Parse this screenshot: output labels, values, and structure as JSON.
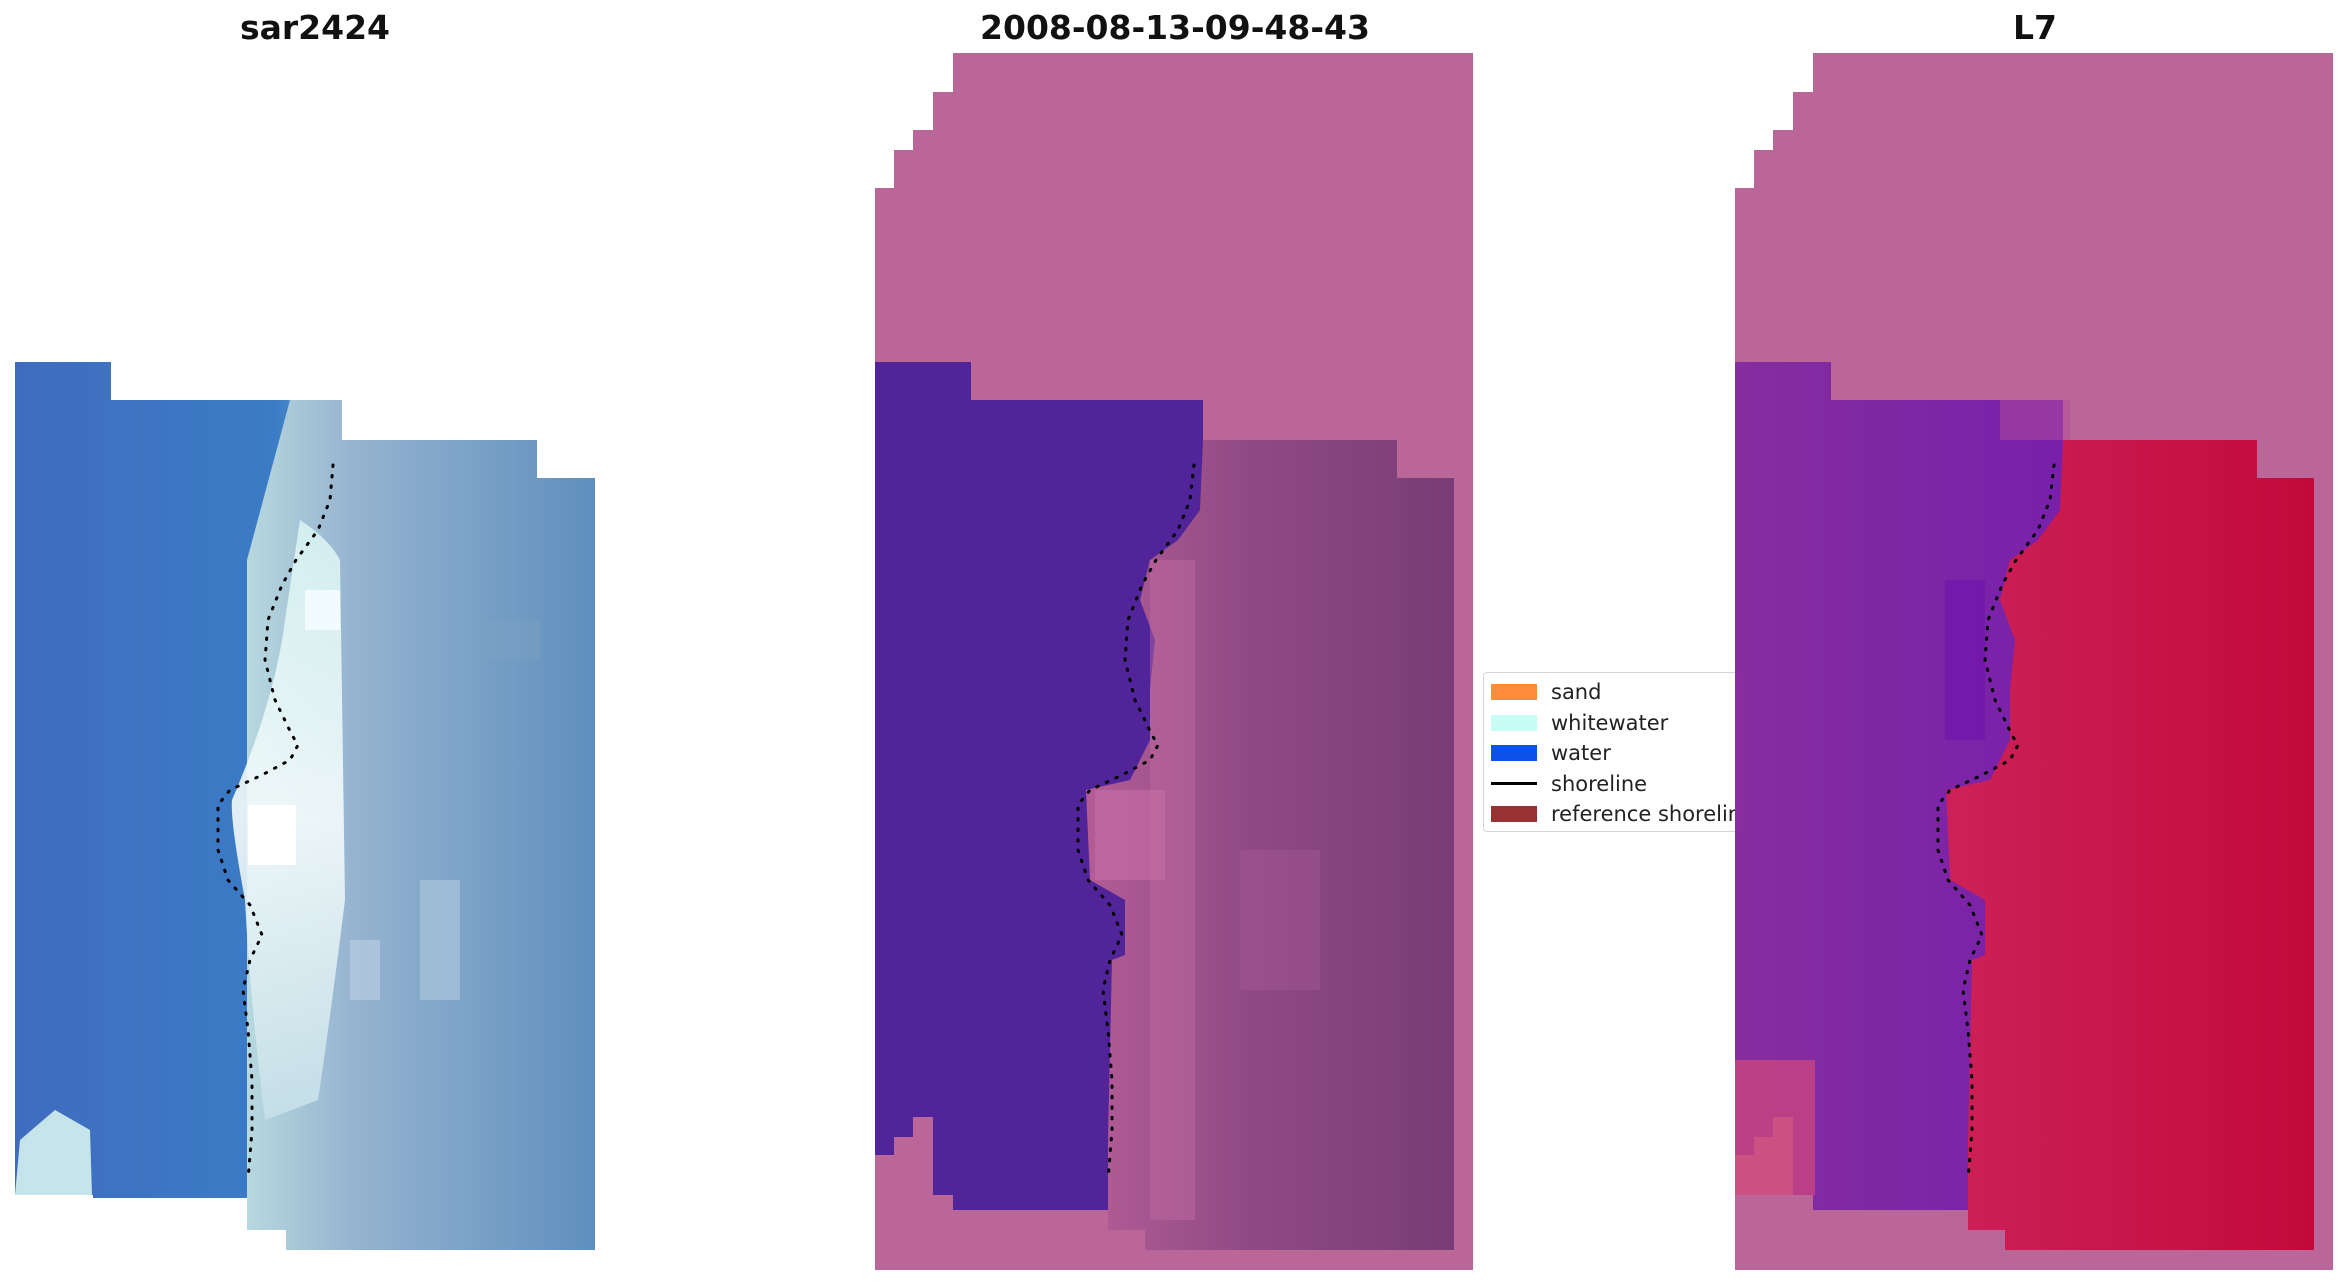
{
  "panels": [
    {
      "id": "rgb",
      "title": "sar2424"
    },
    {
      "id": "classified",
      "title": "2008-08-13-09-48-43"
    },
    {
      "id": "index",
      "title": "L7"
    }
  ],
  "legend": {
    "items": [
      {
        "label": "sand",
        "color": "#ff8c3a",
        "type": "patch"
      },
      {
        "label": "whitewater",
        "color": "#c8fcf6",
        "type": "patch"
      },
      {
        "label": "water",
        "color": "#0a52ea",
        "type": "patch"
      },
      {
        "label": "shoreline",
        "color": "#000000",
        "type": "line"
      },
      {
        "label": "reference shoreline",
        "color": "#993333",
        "type": "patch"
      }
    ]
  },
  "colors": {
    "nodata": "#bb6698",
    "water_class": "#51249a",
    "rgb_water": "#3d6fbd",
    "index_water": "#7a25a8",
    "index_land": "#c2173d"
  }
}
